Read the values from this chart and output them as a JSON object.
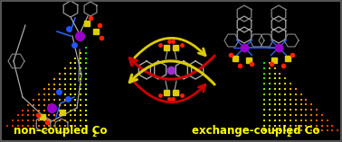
{
  "bg_color": "#000000",
  "border_color": "#666666",
  "label_color": "#ffff00",
  "label_fontsize": 8.5,
  "left_label": "non–coupled Co",
  "left_label_2": "2",
  "right_label": "exchange-coupled Co",
  "right_label_2": "2",
  "arrow_red": "#cc0000",
  "arrow_yellow": "#ddcc00",
  "dot_green": "#00ee00",
  "dot_yellow": "#eeee00",
  "dot_orange": "#ee8800",
  "dot_red": "#ee1100",
  "bond_gray": "#aaaaaa",
  "bond_blue": "#3366ff",
  "co_purple": "#9900cc",
  "co_orange": "#cc5500",
  "s_yellow": "#ddcc00",
  "o_red": "#ff2200",
  "n_blue": "#2255ff",
  "ring_gray": "#888888",
  "fig_width": 3.78,
  "fig_height": 1.58,
  "dpi": 100
}
